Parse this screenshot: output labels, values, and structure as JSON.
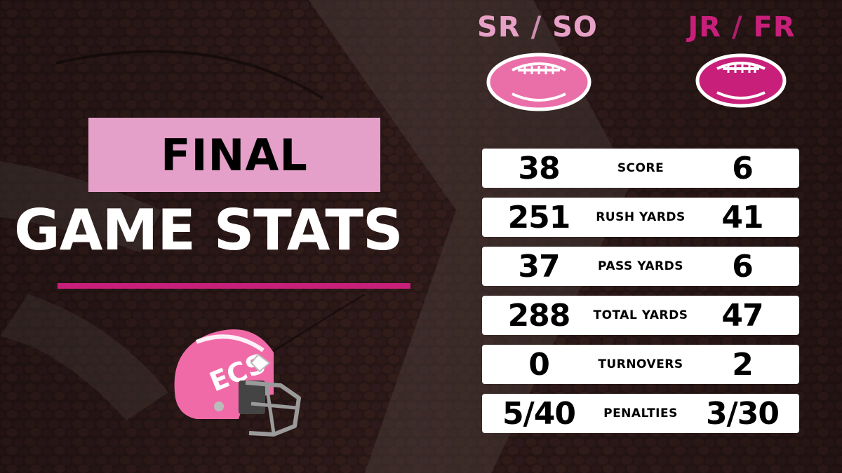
{
  "teams": {
    "left": {
      "name_a": "SR",
      "sep": " / ",
      "name_b": "SO",
      "color": "#e7a1c7"
    },
    "right": {
      "name_a": "JR",
      "sep": " / ",
      "name_b": "FR",
      "color": "#c8207a"
    }
  },
  "title": {
    "final": "FINAL",
    "subtitle": "GAME STATS"
  },
  "helmet_text": "ECS",
  "stats": [
    {
      "label": "SCORE",
      "left": "38",
      "right": "6"
    },
    {
      "label": "RUSH YARDS",
      "left": "251",
      "right": "41"
    },
    {
      "label": "PASS YARDS",
      "left": "37",
      "right": "6"
    },
    {
      "label": "TOTAL YARDS",
      "left": "288",
      "right": "47"
    },
    {
      "label": "TURNOVERS",
      "left": "0",
      "right": "2"
    },
    {
      "label": "PENALTIES",
      "left": "5/40",
      "right": "3/30"
    }
  ],
  "colors": {
    "accent_pink": "#c8207a",
    "light_pink": "#e4a0c8",
    "helmet_pink": "#f06aa8"
  }
}
